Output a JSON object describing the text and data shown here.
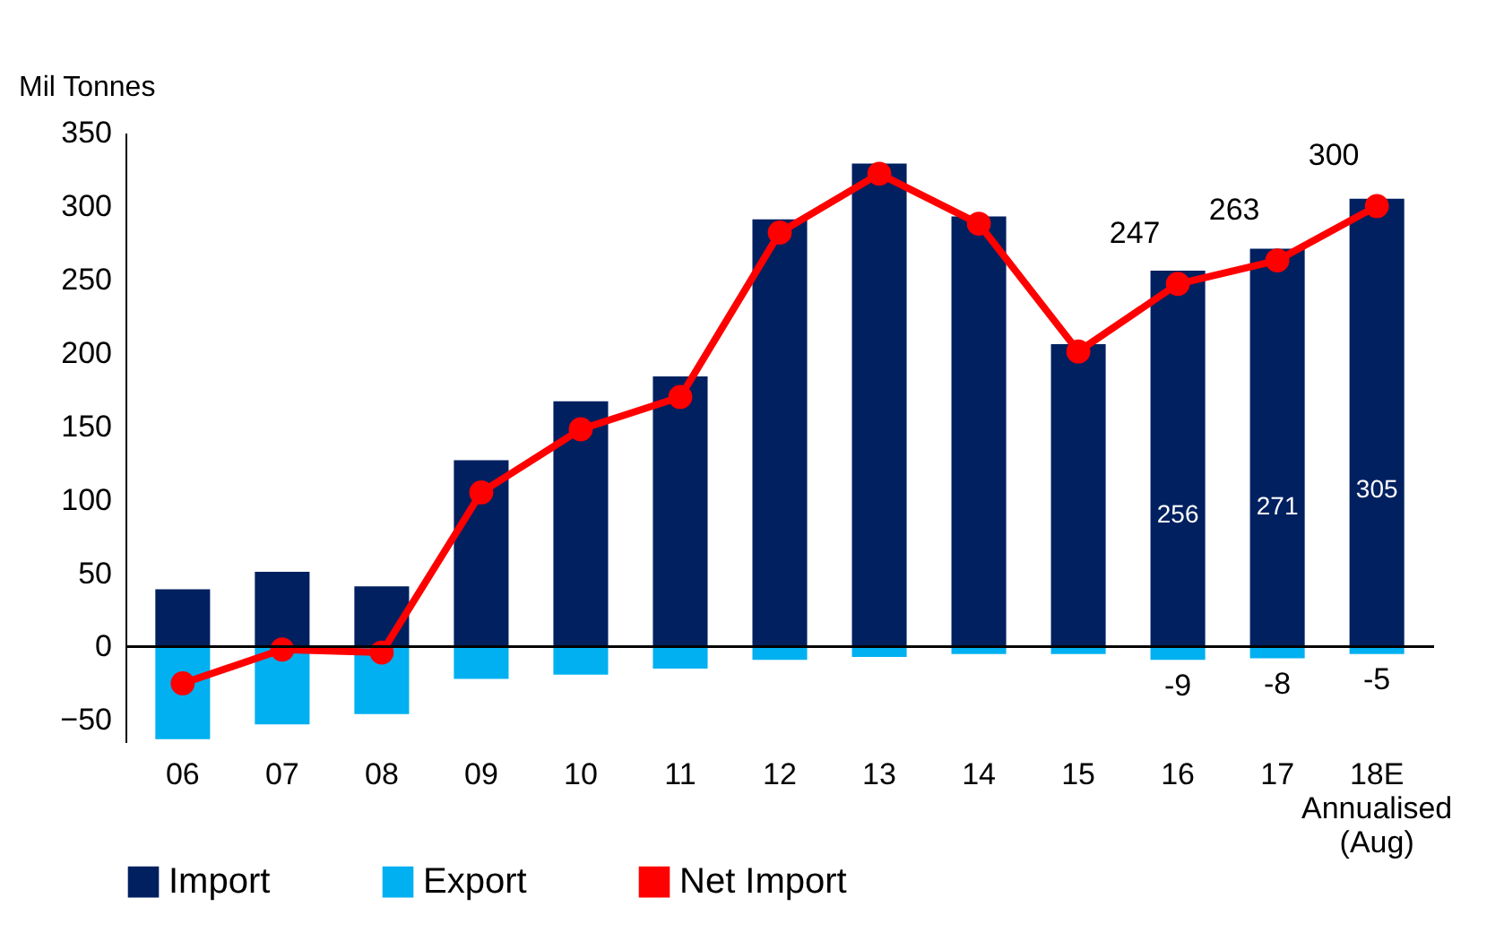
{
  "chart_data": {
    "type": "bar",
    "stacked": true,
    "ylabel": "Mil Tonnes",
    "categories": [
      "06",
      "07",
      "08",
      "09",
      "10",
      "11",
      "12",
      "13",
      "14",
      "15",
      "16",
      "17",
      "18E Annualised (Aug)"
    ],
    "ylim": [
      -65,
      350
    ],
    "yticks": [
      -50,
      0,
      50,
      100,
      150,
      200,
      250,
      300,
      350
    ],
    "grid": false,
    "legend": "bottom",
    "ref_lines": [
      {
        "axis": "y",
        "value": 0,
        "label": null,
        "color": "#000000"
      }
    ],
    "series": [
      {
        "name": "Import",
        "color": "#002060",
        "values": [
          39,
          51,
          41,
          127,
          167,
          184,
          291,
          329,
          293,
          206,
          256,
          271,
          305
        ],
        "value_labels": [
          null,
          null,
          null,
          null,
          null,
          null,
          null,
          null,
          null,
          null,
          "256",
          "271",
          "305"
        ]
      },
      {
        "name": "Export",
        "color": "#00b0f0",
        "values": [
          -63,
          -53,
          -46,
          -22,
          -19,
          -15,
          -9,
          -7,
          -5,
          -5,
          -9,
          -8,
          -5
        ],
        "value_labels": [
          null,
          null,
          null,
          null,
          null,
          null,
          null,
          null,
          null,
          null,
          "-9",
          "-8",
          "-5"
        ]
      },
      {
        "name": "Net Import",
        "type": "line",
        "color": "#ff0000",
        "marker": "circle",
        "line_style": "solid",
        "values": [
          -25,
          -2,
          -4,
          105,
          148,
          170,
          282,
          322,
          288,
          201,
          247,
          263,
          300
        ],
        "value_labels": [
          null,
          null,
          null,
          null,
          null,
          null,
          null,
          null,
          null,
          null,
          "247",
          "263",
          "300"
        ]
      }
    ]
  }
}
